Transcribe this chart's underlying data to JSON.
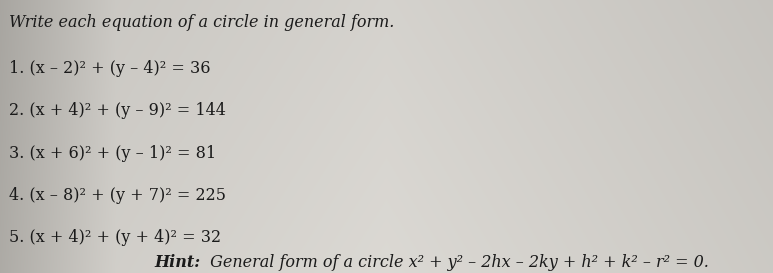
{
  "title": "Write each equation of a circle in general form.",
  "problems": [
    "1. (x – 2)² + (y – 4)² = 36",
    "2. (x + 4)² + (y – 9)² = 144",
    "3. (x + 6)² + (y – 1)² = 81",
    "4. (x – 8)² + (y + 7)² = 225",
    "5. (x + 4)² + (y + 4)² = 32"
  ],
  "hint_bold": "Hint:",
  "hint_rest": " General form of a circle x² + y² – 2hx – 2ky + h² + k² – r² = 0.",
  "text_color": "#1a1a1a",
  "fig_width": 7.73,
  "fig_height": 2.73,
  "dpi": 100,
  "bg_left": "#b8b4b0",
  "bg_center": "#d8d4ce",
  "bg_right": "#c8c4be"
}
